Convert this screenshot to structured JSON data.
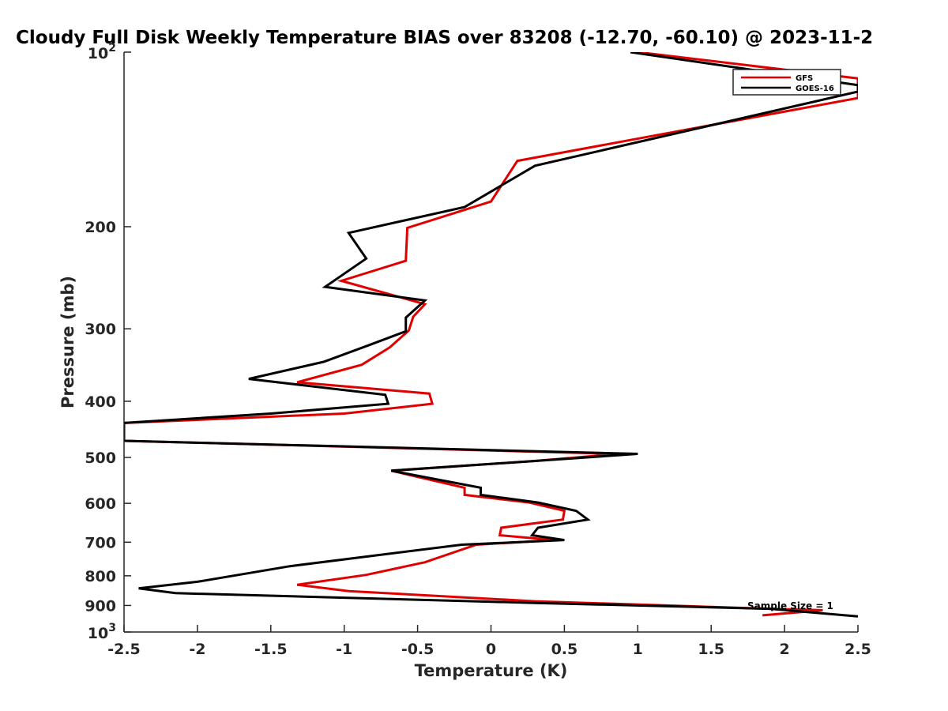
{
  "chart_data": {
    "type": "line",
    "title": "Cloudy Full Disk Weekly Temperature BIAS over 83208 (-12.70, -60.10) @ 2023-11-2",
    "xlabel": "Temperature (K)",
    "ylabel": "Pressure (mb)",
    "xlim": [
      -2.5,
      2.5
    ],
    "ylim": [
      100,
      1000
    ],
    "y_scale": "log",
    "y_reversed": true,
    "x_ticks": [
      {
        "value": -2.5,
        "label": "-2.5"
      },
      {
        "value": -2,
        "label": "-2"
      },
      {
        "value": -1.5,
        "label": "-1.5"
      },
      {
        "value": -1,
        "label": "-1"
      },
      {
        "value": -0.5,
        "label": "-0.5"
      },
      {
        "value": 0,
        "label": "0"
      },
      {
        "value": 0.5,
        "label": "0.5"
      },
      {
        "value": 1,
        "label": "1"
      },
      {
        "value": 1.5,
        "label": "1.5"
      },
      {
        "value": 2,
        "label": "2"
      },
      {
        "value": 2.5,
        "label": "2.5"
      }
    ],
    "y_ticks": [
      {
        "value": 200,
        "label": "200"
      },
      {
        "value": 300,
        "label": "300"
      },
      {
        "value": 400,
        "label": "400"
      },
      {
        "value": 500,
        "label": "500"
      },
      {
        "value": 600,
        "label": "600"
      },
      {
        "value": 700,
        "label": "700"
      },
      {
        "value": 800,
        "label": "800"
      },
      {
        "value": 900,
        "label": "900"
      }
    ],
    "y_end_ticks": [
      {
        "value": 100,
        "base": "10",
        "exp": "2"
      },
      {
        "value": 1000,
        "base": "10",
        "exp": "3"
      }
    ],
    "legend": {
      "position": "top-right"
    },
    "annotations": [
      {
        "text": "Sample Size = 1",
        "x": 2.2,
        "y": 900
      }
    ],
    "series": [
      {
        "name": "GFS",
        "color": "#e00000",
        "points": [
          [
            1.0,
            100
          ],
          [
            2.5,
            111
          ],
          [
            2.5,
            120
          ],
          [
            0.18,
            154
          ],
          [
            0.0,
            181
          ],
          [
            -0.57,
            201
          ],
          [
            -0.58,
            229
          ],
          [
            -1.02,
            248
          ],
          [
            -0.45,
            272
          ],
          [
            -0.53,
            286
          ],
          [
            -0.56,
            302
          ],
          [
            -0.69,
            323
          ],
          [
            -0.88,
            346
          ],
          [
            -1.32,
            371
          ],
          [
            -0.42,
            388
          ],
          [
            -0.4,
            404
          ],
          [
            -1.0,
            420
          ],
          [
            -2.5,
            436
          ],
          [
            -2.5,
            468
          ],
          [
            0.87,
            493
          ],
          [
            0.3,
            507
          ],
          [
            -0.68,
            527
          ],
          [
            -0.18,
            564
          ],
          [
            -0.18,
            580
          ],
          [
            0.26,
            598
          ],
          [
            0.5,
            618
          ],
          [
            0.49,
            640
          ],
          [
            0.07,
            661
          ],
          [
            0.06,
            681
          ],
          [
            0.43,
            694
          ],
          [
            -0.1,
            707
          ],
          [
            -0.45,
            758
          ],
          [
            -0.85,
            797
          ],
          [
            -1.32,
            829
          ],
          [
            -0.97,
            850
          ],
          [
            0.3,
            885
          ],
          [
            1.9,
            912
          ],
          [
            2.26,
            917
          ],
          [
            1.85,
            936
          ]
        ]
      },
      {
        "name": "GOES-16",
        "color": "#000000",
        "points": [
          [
            0.95,
            100
          ],
          [
            2.5,
            114
          ],
          [
            2.5,
            117
          ],
          [
            0.3,
            157
          ],
          [
            -0.18,
            185
          ],
          [
            -0.97,
            205
          ],
          [
            -0.85,
            227
          ],
          [
            -1.13,
            254
          ],
          [
            -0.45,
            268
          ],
          [
            -0.58,
            287
          ],
          [
            -0.58,
            303
          ],
          [
            -0.83,
            320
          ],
          [
            -1.14,
            342
          ],
          [
            -1.65,
            366
          ],
          [
            -0.72,
            390
          ],
          [
            -0.7,
            404
          ],
          [
            -1.5,
            420
          ],
          [
            -2.5,
            436
          ],
          [
            -2.5,
            468
          ],
          [
            1.0,
            493
          ],
          [
            0.3,
            507
          ],
          [
            -0.68,
            527
          ],
          [
            -0.07,
            564
          ],
          [
            -0.07,
            580
          ],
          [
            0.32,
            598
          ],
          [
            0.58,
            618
          ],
          [
            0.66,
            640
          ],
          [
            0.32,
            661
          ],
          [
            0.28,
            681
          ],
          [
            0.5,
            694
          ],
          [
            -0.2,
            707
          ],
          [
            -1.37,
            770
          ],
          [
            -2.0,
            819
          ],
          [
            -2.4,
            841
          ],
          [
            -2.15,
            857
          ],
          [
            0.3,
            891
          ],
          [
            1.9,
            912
          ],
          [
            2.5,
            940
          ]
        ]
      }
    ]
  }
}
